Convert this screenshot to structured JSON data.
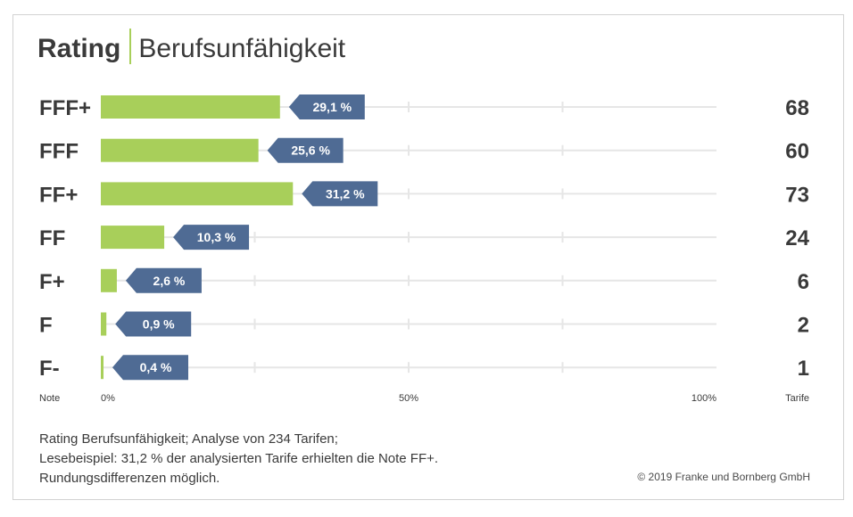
{
  "title": {
    "bold": "Rating",
    "light": "Berufsunfähigkeit"
  },
  "labels": {
    "left_header": "Note",
    "right_header": "Tarife"
  },
  "colors": {
    "bar": "#a8cf5a",
    "badge": "#4f6b94",
    "grid": "#e6e6e6",
    "text": "#3a3a3a"
  },
  "chart_data": {
    "type": "bar",
    "orientation": "horizontal",
    "categories": [
      "FFF+",
      "FFF",
      "FF+",
      "FF",
      "F+",
      "F",
      "F-"
    ],
    "values": [
      29.1,
      25.6,
      31.2,
      10.3,
      2.6,
      0.9,
      0.4
    ],
    "value_labels": [
      "29,1 %",
      "25,6 %",
      "31,2 %",
      "10,3 %",
      "2,6 %",
      "0,9 %",
      "0,4 %"
    ],
    "counts": [
      "68",
      "60",
      "73",
      "24",
      "6",
      "2",
      "1"
    ],
    "xlim": [
      0,
      100
    ],
    "xticks": [
      "0%",
      "50%",
      "100%"
    ],
    "xtick_values": [
      0,
      50,
      100
    ],
    "minor_ticks": [
      25,
      50,
      75
    ],
    "grid": true
  },
  "footnote": [
    "Rating Berufsunfähigkeit; Analyse von 234 Tarifen;",
    "Lesebeispiel: 31,2 % der analysierten Tarife erhielten die Note FF+.",
    "Rundungsdifferenzen möglich."
  ],
  "copyright": "© 2019 Franke und Bornberg GmbH"
}
